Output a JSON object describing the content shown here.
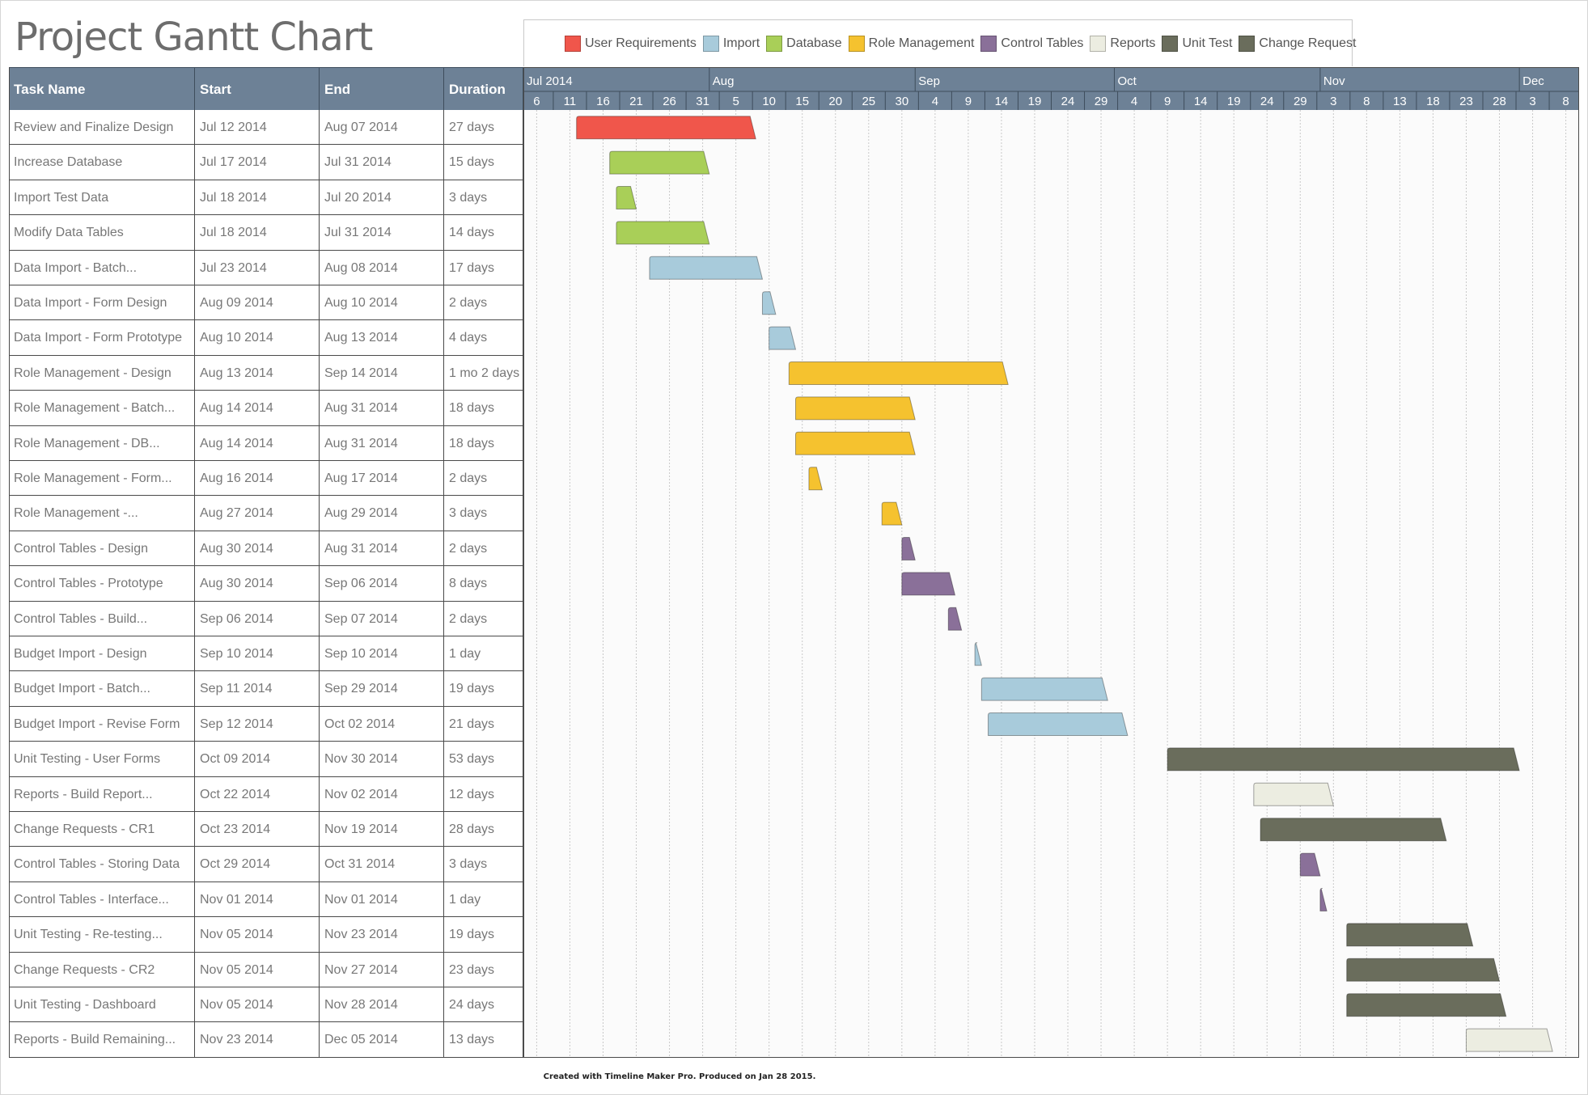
{
  "page": {
    "title": "Project Gantt Chart",
    "footer": "Created with Timeline Maker Pro. Produced on Jan 28 2015."
  },
  "table": {
    "headers": [
      "Task Name",
      "Start",
      "End",
      "Duration"
    ]
  },
  "chart_data": {
    "type": "gantt",
    "title": "Project Gantt Chart",
    "time_axis": {
      "start": "2014-07-04",
      "end": "2014-12-10",
      "months": [
        {
          "label": "Jul 2014",
          "date": "2014-07-04"
        },
        {
          "label": "Aug",
          "date": "2014-08-01"
        },
        {
          "label": "Sep",
          "date": "2014-09-01"
        },
        {
          "label": "Oct",
          "date": "2014-10-01"
        },
        {
          "label": "Nov",
          "date": "2014-11-01"
        },
        {
          "label": "Dec",
          "date": "2014-12-01"
        }
      ],
      "ticks": [
        {
          "label": "6",
          "date": "2014-07-06"
        },
        {
          "label": "11",
          "date": "2014-07-11"
        },
        {
          "label": "16",
          "date": "2014-07-16"
        },
        {
          "label": "21",
          "date": "2014-07-21"
        },
        {
          "label": "26",
          "date": "2014-07-26"
        },
        {
          "label": "31",
          "date": "2014-07-31"
        },
        {
          "label": "5",
          "date": "2014-08-05"
        },
        {
          "label": "10",
          "date": "2014-08-10"
        },
        {
          "label": "15",
          "date": "2014-08-15"
        },
        {
          "label": "20",
          "date": "2014-08-20"
        },
        {
          "label": "25",
          "date": "2014-08-25"
        },
        {
          "label": "30",
          "date": "2014-08-30"
        },
        {
          "label": "4",
          "date": "2014-09-04"
        },
        {
          "label": "9",
          "date": "2014-09-09"
        },
        {
          "label": "14",
          "date": "2014-09-14"
        },
        {
          "label": "19",
          "date": "2014-09-19"
        },
        {
          "label": "24",
          "date": "2014-09-24"
        },
        {
          "label": "29",
          "date": "2014-09-29"
        },
        {
          "label": "4",
          "date": "2014-10-04"
        },
        {
          "label": "9",
          "date": "2014-10-09"
        },
        {
          "label": "14",
          "date": "2014-10-14"
        },
        {
          "label": "19",
          "date": "2014-10-19"
        },
        {
          "label": "24",
          "date": "2014-10-24"
        },
        {
          "label": "29",
          "date": "2014-10-29"
        },
        {
          "label": "3",
          "date": "2014-11-03"
        },
        {
          "label": "8",
          "date": "2014-11-08"
        },
        {
          "label": "13",
          "date": "2014-11-13"
        },
        {
          "label": "18",
          "date": "2014-11-18"
        },
        {
          "label": "23",
          "date": "2014-11-23"
        },
        {
          "label": "28",
          "date": "2014-11-28"
        },
        {
          "label": "3",
          "date": "2014-12-03"
        },
        {
          "label": "8",
          "date": "2014-12-08"
        }
      ]
    },
    "legend": [
      {
        "name": "User Requirements",
        "color": "#f0564b"
      },
      {
        "name": "Import",
        "color": "#a8cbdb"
      },
      {
        "name": "Database",
        "color": "#a9cf58"
      },
      {
        "name": "Role Management",
        "color": "#f5c22f"
      },
      {
        "name": "Control Tables",
        "color": "#8a7099"
      },
      {
        "name": "Reports",
        "color": "#ecede1"
      },
      {
        "name": "Unit Test",
        "color": "#6a6d5c"
      },
      {
        "name": "Change Request",
        "color": "#6a6d5c"
      }
    ],
    "tasks": [
      {
        "name": "Review and Finalize Design",
        "start": "Jul 12 2014",
        "end": "Aug 07 2014",
        "duration": "27 days",
        "start_date": "2014-07-12",
        "end_date": "2014-08-07",
        "category": "User Requirements"
      },
      {
        "name": "Increase Database",
        "start": "Jul 17 2014",
        "end": "Jul 31 2014",
        "duration": "15 days",
        "start_date": "2014-07-17",
        "end_date": "2014-07-31",
        "category": "Database"
      },
      {
        "name": "Import Test Data",
        "start": "Jul 18 2014",
        "end": "Jul 20 2014",
        "duration": "3 days",
        "start_date": "2014-07-18",
        "end_date": "2014-07-20",
        "category": "Database"
      },
      {
        "name": "Modify Data Tables",
        "start": "Jul 18 2014",
        "end": "Jul 31 2014",
        "duration": "14 days",
        "start_date": "2014-07-18",
        "end_date": "2014-07-31",
        "category": "Database"
      },
      {
        "name": "Data Import - Batch...",
        "start": "Jul 23 2014",
        "end": "Aug 08 2014",
        "duration": "17 days",
        "start_date": "2014-07-23",
        "end_date": "2014-08-08",
        "category": "Import"
      },
      {
        "name": "Data Import - Form Design",
        "start": "Aug 09 2014",
        "end": "Aug 10 2014",
        "duration": "2 days",
        "start_date": "2014-08-09",
        "end_date": "2014-08-10",
        "category": "Import"
      },
      {
        "name": "Data Import - Form Prototype",
        "start": "Aug 10 2014",
        "end": "Aug 13 2014",
        "duration": "4 days",
        "start_date": "2014-08-10",
        "end_date": "2014-08-13",
        "category": "Import"
      },
      {
        "name": "Role Management - Design",
        "start": "Aug 13 2014",
        "end": "Sep 14 2014",
        "duration": "1 mo 2 days",
        "start_date": "2014-08-13",
        "end_date": "2014-09-14",
        "category": "Role Management"
      },
      {
        "name": "Role Management - Batch...",
        "start": "Aug 14 2014",
        "end": "Aug 31 2014",
        "duration": "18 days",
        "start_date": "2014-08-14",
        "end_date": "2014-08-31",
        "category": "Role Management"
      },
      {
        "name": "Role Management - DB...",
        "start": "Aug 14 2014",
        "end": "Aug 31 2014",
        "duration": "18 days",
        "start_date": "2014-08-14",
        "end_date": "2014-08-31",
        "category": "Role Management"
      },
      {
        "name": "Role Management - Form...",
        "start": "Aug 16 2014",
        "end": "Aug 17 2014",
        "duration": "2 days",
        "start_date": "2014-08-16",
        "end_date": "2014-08-17",
        "category": "Role Management"
      },
      {
        "name": "Role Management -...",
        "start": "Aug 27 2014",
        "end": "Aug 29 2014",
        "duration": "3 days",
        "start_date": "2014-08-27",
        "end_date": "2014-08-29",
        "category": "Role Management"
      },
      {
        "name": "Control Tables - Design",
        "start": "Aug 30 2014",
        "end": "Aug 31 2014",
        "duration": "2 days",
        "start_date": "2014-08-30",
        "end_date": "2014-08-31",
        "category": "Control Tables"
      },
      {
        "name": "Control Tables - Prototype",
        "start": "Aug 30 2014",
        "end": "Sep 06 2014",
        "duration": "8 days",
        "start_date": "2014-08-30",
        "end_date": "2014-09-06",
        "category": "Control Tables"
      },
      {
        "name": "Control Tables - Build...",
        "start": "Sep 06 2014",
        "end": "Sep 07 2014",
        "duration": "2 days",
        "start_date": "2014-09-06",
        "end_date": "2014-09-07",
        "category": "Control Tables"
      },
      {
        "name": "Budget Import - Design",
        "start": "Sep 10 2014",
        "end": "Sep 10 2014",
        "duration": "1 day",
        "start_date": "2014-09-10",
        "end_date": "2014-09-10",
        "category": "Import"
      },
      {
        "name": "Budget Import  - Batch...",
        "start": "Sep 11 2014",
        "end": "Sep 29 2014",
        "duration": "19 days",
        "start_date": "2014-09-11",
        "end_date": "2014-09-29",
        "category": "Import"
      },
      {
        "name": "Budget Import - Revise Form",
        "start": "Sep 12 2014",
        "end": "Oct 02 2014",
        "duration": "21 days",
        "start_date": "2014-09-12",
        "end_date": "2014-10-02",
        "category": "Import"
      },
      {
        "name": "Unit Testing - User Forms",
        "start": "Oct 09 2014",
        "end": "Nov 30 2014",
        "duration": "53 days",
        "start_date": "2014-10-09",
        "end_date": "2014-11-30",
        "category": "Unit Test"
      },
      {
        "name": "Reports - Build Report...",
        "start": "Oct 22 2014",
        "end": "Nov 02 2014",
        "duration": "12 days",
        "start_date": "2014-10-22",
        "end_date": "2014-11-02",
        "category": "Reports"
      },
      {
        "name": "Change Requests - CR1",
        "start": "Oct 23 2014",
        "end": "Nov 19 2014",
        "duration": "28 days",
        "start_date": "2014-10-23",
        "end_date": "2014-11-19",
        "category": "Change Request"
      },
      {
        "name": "Control Tables - Storing Data",
        "start": "Oct 29 2014",
        "end": "Oct 31 2014",
        "duration": "3 days",
        "start_date": "2014-10-29",
        "end_date": "2014-10-31",
        "category": "Control Tables"
      },
      {
        "name": "Control Tables - Interface...",
        "start": "Nov 01 2014",
        "end": "Nov 01 2014",
        "duration": "1 day",
        "start_date": "2014-11-01",
        "end_date": "2014-11-01",
        "category": "Control Tables"
      },
      {
        "name": "Unit Testing - Re-testing...",
        "start": "Nov 05 2014",
        "end": "Nov 23 2014",
        "duration": "19 days",
        "start_date": "2014-11-05",
        "end_date": "2014-11-23",
        "category": "Unit Test"
      },
      {
        "name": "Change Requests - CR2",
        "start": "Nov 05 2014",
        "end": "Nov 27 2014",
        "duration": "23 days",
        "start_date": "2014-11-05",
        "end_date": "2014-11-27",
        "category": "Change Request"
      },
      {
        "name": "Unit Testing - Dashboard",
        "start": "Nov 05 2014",
        "end": "Nov 28 2014",
        "duration": "24 days",
        "start_date": "2014-11-05",
        "end_date": "2014-11-28",
        "category": "Unit Test"
      },
      {
        "name": "Reports - Build Remaining...",
        "start": "Nov 23 2014",
        "end": "Dec 05 2014",
        "duration": "13 days",
        "start_date": "2014-11-23",
        "end_date": "2014-12-05",
        "category": "Reports"
      }
    ]
  }
}
